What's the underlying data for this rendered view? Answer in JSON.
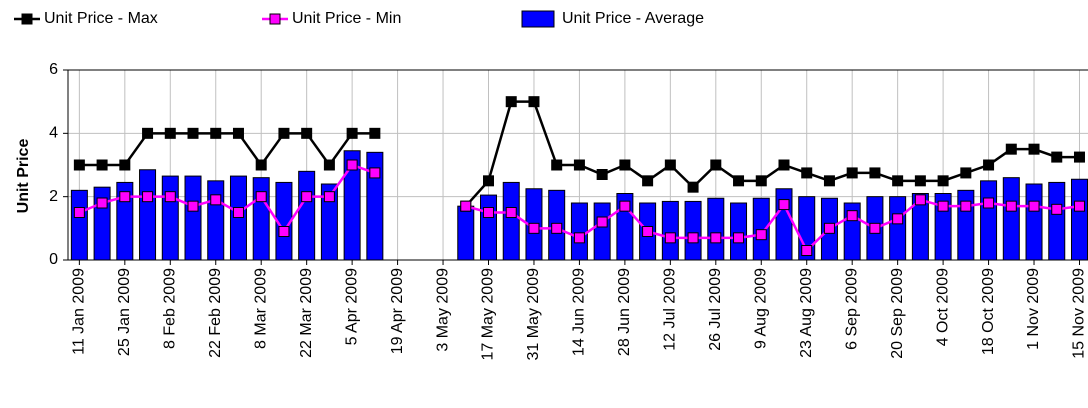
{
  "chart_data": {
    "type": "bar",
    "y_label": "Unit Price",
    "categories": [
      "11 Jan 2009",
      null,
      "25 Jan 2009",
      null,
      "8 Feb 2009",
      null,
      "22 Feb 2009",
      null,
      "8 Mar 2009",
      null,
      "22 Mar 2009",
      null,
      "5 Apr 2009",
      null,
      "19 Apr 2009",
      null,
      "3 May 2009",
      null,
      "17 May 2009",
      null,
      "31 May 2009",
      null,
      "14 Jun 2009",
      null,
      "28 Jun 2009",
      null,
      "12 Jul 2009",
      null,
      "26 Jul 2009",
      null,
      "9 Aug 2009",
      null,
      "23 Aug 2009",
      null,
      "6 Sep 2009",
      null,
      "20 Sep 2009",
      null,
      "4 Oct 2009",
      null,
      "18 Oct 2009",
      null,
      "1 Nov 2009",
      null,
      "15 Nov 2009"
    ],
    "series": [
      {
        "name": "Unit Price - Max",
        "type": "line",
        "color": "#000000",
        "marker_color": "#000000",
        "values": [
          3,
          3,
          3,
          4,
          4,
          4,
          4,
          4,
          3,
          4,
          4,
          3,
          4,
          4,
          null,
          null,
          null,
          1.7,
          2.5,
          5,
          5,
          3,
          3,
          2.7,
          3,
          2.5,
          3,
          2.3,
          3,
          2.5,
          2.5,
          3,
          2.75,
          2.5,
          2.75,
          2.75,
          2.5,
          2.5,
          2.5,
          2.75,
          3,
          3.5,
          3.5,
          3.25,
          3.25
        ]
      },
      {
        "name": "Unit Price - Min",
        "type": "line",
        "color": "#ff00ff",
        "marker_color": "#ff00ff",
        "values": [
          1.5,
          1.8,
          2,
          2,
          2,
          1.7,
          1.9,
          1.5,
          2,
          0.9,
          2,
          2,
          3,
          2.75,
          null,
          null,
          null,
          1.7,
          1.5,
          1.5,
          1,
          1,
          0.7,
          1.2,
          1.7,
          0.9,
          0.7,
          0.7,
          0.7,
          0.7,
          0.8,
          1.75,
          0.3,
          1,
          1.4,
          1,
          1.3,
          1.9,
          1.7,
          1.7,
          1.8,
          1.7,
          1.7,
          1.6,
          1.7
        ]
      },
      {
        "name": "Unit Price - Average",
        "type": "bar",
        "color": "#0000ff",
        "values": [
          2.2,
          2.3,
          2.45,
          2.85,
          2.65,
          2.65,
          2.5,
          2.65,
          2.6,
          2.45,
          2.8,
          2.4,
          3.45,
          3.4,
          null,
          null,
          null,
          1.7,
          2.05,
          2.45,
          2.25,
          2.2,
          1.8,
          1.8,
          2.1,
          1.8,
          1.85,
          1.85,
          1.95,
          1.8,
          1.95,
          2.25,
          2,
          1.95,
          1.8,
          2,
          2,
          2.1,
          2.1,
          2.2,
          2.5,
          2.6,
          2.4,
          2.45,
          2.55
        ]
      }
    ],
    "ylim": [
      0,
      6
    ],
    "yticks": [
      0,
      2,
      4,
      6
    ],
    "grid": true,
    "legend": "top"
  }
}
